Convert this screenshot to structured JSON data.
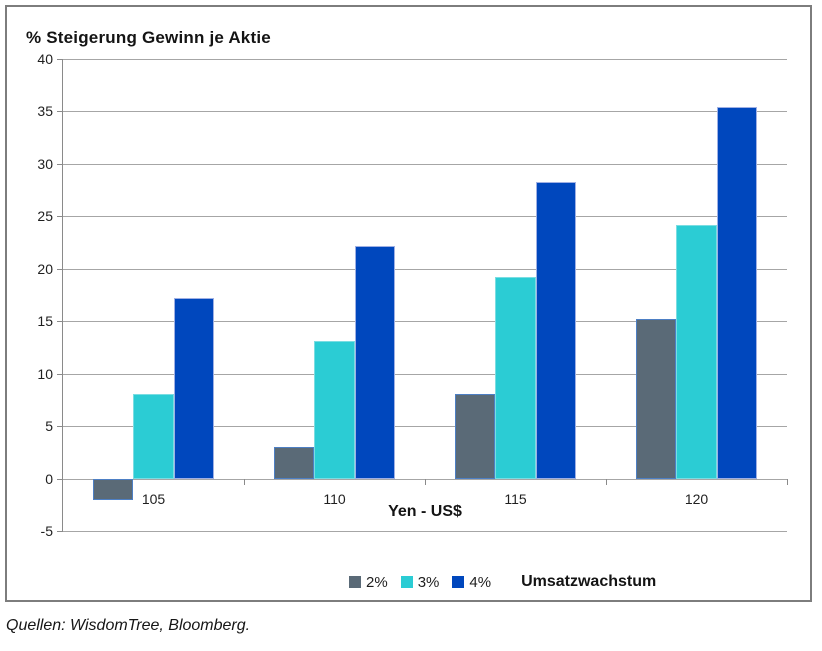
{
  "footer": {
    "text": "Quellen: WisdomTree, Bloomberg."
  },
  "chart_data": {
    "type": "bar",
    "title": "% Steigerung Gewinn je Aktie",
    "xlabel": "Yen - US$",
    "ylabel": "",
    "legend_title": "Umsatzwachstum",
    "legend_position": "bottom",
    "categories": [
      "105",
      "110",
      "115",
      "120"
    ],
    "series": [
      {
        "name": "2%",
        "color": "#5a6a77",
        "border": "#4d7fc4",
        "values": [
          -2.0,
          3.0,
          8.1,
          15.2
        ]
      },
      {
        "name": "3%",
        "color": "#2bccd4",
        "border": "#7adde2",
        "values": [
          8.1,
          13.1,
          19.2,
          24.2
        ]
      },
      {
        "name": "4%",
        "color": "#0047bd",
        "border": "#9fb0e4",
        "values": [
          17.2,
          22.2,
          28.3,
          35.4
        ]
      }
    ],
    "ylim": [
      -5,
      40
    ],
    "yticks": [
      40,
      35,
      30,
      25,
      20,
      15,
      10,
      5,
      0,
      -5
    ],
    "grid": true,
    "axis_color": "#8a8a8a",
    "gridline_color": "#a6a6a6"
  }
}
